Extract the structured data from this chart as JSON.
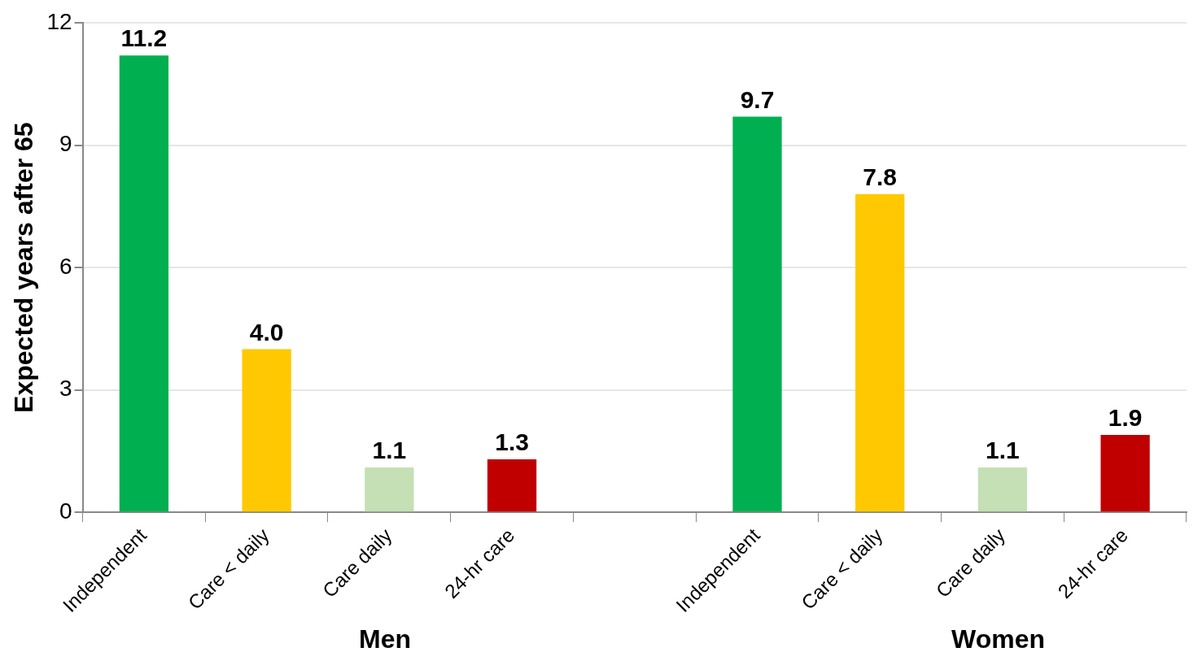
{
  "chart_data": {
    "type": "bar",
    "ylabel": "Expected years after 65",
    "categories": [
      "Independent",
      "Care < daily",
      "Care daily",
      "24-hr care",
      null,
      "Independent",
      "Care < daily",
      "Care daily",
      "24-hr care"
    ],
    "values": [
      11.2,
      4.0,
      1.1,
      1.3,
      null,
      9.7,
      7.8,
      1.1,
      1.9
    ],
    "colors": [
      "#00b050",
      "#ffc800",
      "#c4e0b4",
      "#c00000",
      "#ffffff",
      "#00b050",
      "#ffc800",
      "#c4e0b4",
      "#c00000"
    ],
    "value_labels": [
      "11.2",
      "4.0",
      "1.1",
      "1.3",
      null,
      "9.7",
      "7.8",
      "1.1",
      "1.9"
    ],
    "annotations": [
      "Men",
      "Women"
    ],
    "ylim": [
      0,
      12
    ],
    "yticks": [
      0,
      3,
      6,
      9,
      12
    ],
    "grid": "y",
    "legend": false
  }
}
